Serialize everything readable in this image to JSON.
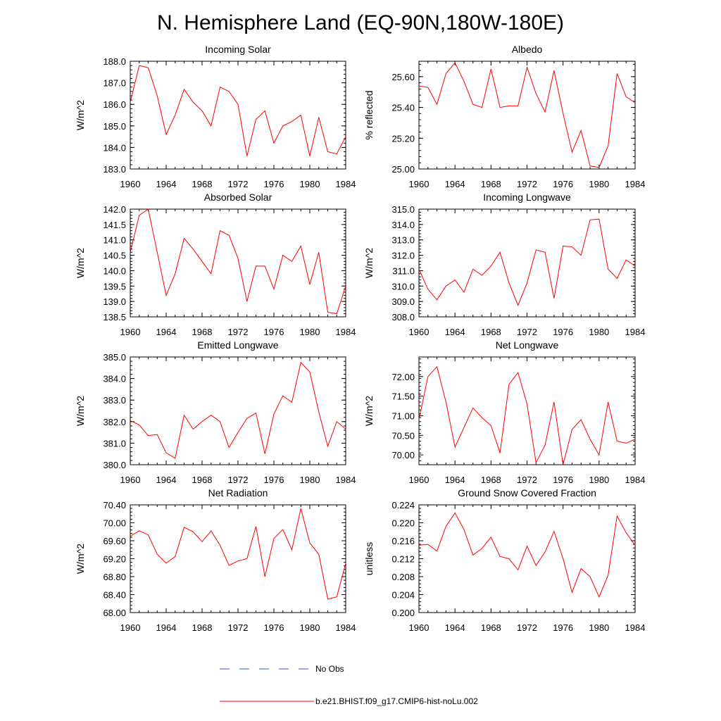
{
  "figure": {
    "title": "N. Hemisphere Land (EQ-90N,180W-180E)"
  },
  "legend": [
    {
      "label": "No Obs",
      "color": "#3355cc",
      "style": "dashed"
    },
    {
      "label": "b.e21.BHIST.f09_g17.CMIP6-hist-noLu.002",
      "color": "#ff0000",
      "style": "solid"
    }
  ],
  "chart_data": [
    {
      "type": "line",
      "title": "Incoming Solar",
      "ylabel": "W/m^2",
      "xlim": [
        1960,
        1984
      ],
      "xticks": [
        1960,
        1964,
        1968,
        1972,
        1976,
        1980,
        1984
      ],
      "ylim": [
        183.0,
        188.0
      ],
      "yticks": [
        "183.0",
        "184.0",
        "185.0",
        "186.0",
        "187.0",
        "188.0"
      ],
      "x": [
        1960,
        1961,
        1962,
        1963,
        1964,
        1965,
        1966,
        1967,
        1968,
        1969,
        1970,
        1971,
        1972,
        1973,
        1974,
        1975,
        1976,
        1977,
        1978,
        1979,
        1980,
        1981,
        1982,
        1983,
        1984
      ],
      "series": [
        {
          "color": "#ff0000",
          "values": [
            186.1,
            187.8,
            187.7,
            186.4,
            184.6,
            185.5,
            186.7,
            186.1,
            185.7,
            185.0,
            186.8,
            186.6,
            186.0,
            183.6,
            185.3,
            185.7,
            184.2,
            185.0,
            185.2,
            185.5,
            183.6,
            185.4,
            183.8,
            183.7,
            184.5
          ]
        }
      ]
    },
    {
      "type": "line",
      "title": "Albedo",
      "ylabel": "% reflected",
      "xlim": [
        1960,
        1984
      ],
      "xticks": [
        1960,
        1964,
        1968,
        1972,
        1976,
        1980,
        1984
      ],
      "ylim": [
        25.0,
        25.7
      ],
      "yticks": [
        "25.00",
        "25.20",
        "25.40",
        "25.60"
      ],
      "x": [
        1960,
        1961,
        1962,
        1963,
        1964,
        1965,
        1966,
        1967,
        1968,
        1969,
        1970,
        1971,
        1972,
        1973,
        1974,
        1975,
        1976,
        1977,
        1978,
        1979,
        1980,
        1981,
        1982,
        1983,
        1984
      ],
      "series": [
        {
          "color": "#ff0000",
          "values": [
            25.54,
            25.53,
            25.42,
            25.62,
            25.69,
            25.57,
            25.42,
            25.4,
            25.65,
            25.4,
            25.41,
            25.41,
            25.66,
            25.49,
            25.37,
            25.64,
            25.36,
            25.11,
            25.25,
            25.02,
            25.01,
            25.15,
            25.62,
            25.47,
            25.43
          ]
        }
      ]
    },
    {
      "type": "line",
      "title": "Absorbed Solar",
      "ylabel": "W/m^2",
      "xlim": [
        1960,
        1984
      ],
      "xticks": [
        1960,
        1964,
        1968,
        1972,
        1976,
        1980,
        1984
      ],
      "ylim": [
        138.5,
        142.0
      ],
      "yticks": [
        "138.5",
        "139.0",
        "139.5",
        "140.0",
        "140.5",
        "141.0",
        "141.5",
        "142.0"
      ],
      "x": [
        1960,
        1961,
        1962,
        1963,
        1964,
        1965,
        1966,
        1967,
        1968,
        1969,
        1970,
        1971,
        1972,
        1973,
        1974,
        1975,
        1976,
        1977,
        1978,
        1979,
        1980,
        1981,
        1982,
        1983,
        1984
      ],
      "series": [
        {
          "color": "#ff0000",
          "values": [
            140.6,
            141.8,
            142.0,
            140.6,
            139.2,
            139.9,
            141.05,
            140.7,
            140.3,
            139.9,
            141.3,
            141.15,
            140.4,
            139.0,
            140.15,
            140.15,
            139.4,
            140.5,
            140.3,
            140.8,
            139.55,
            140.6,
            138.65,
            138.6,
            139.5
          ]
        }
      ]
    },
    {
      "type": "line",
      "title": "Incoming Longwave",
      "ylabel": "W/m^2",
      "xlim": [
        1960,
        1984
      ],
      "xticks": [
        1960,
        1964,
        1968,
        1972,
        1976,
        1980,
        1984
      ],
      "ylim": [
        308.0,
        315.0
      ],
      "yticks": [
        "308.0",
        "309.0",
        "310.0",
        "311.0",
        "312.0",
        "313.0",
        "314.0",
        "315.0"
      ],
      "x": [
        1960,
        1961,
        1962,
        1963,
        1964,
        1965,
        1966,
        1967,
        1968,
        1969,
        1970,
        1971,
        1972,
        1973,
        1974,
        1975,
        1976,
        1977,
        1978,
        1979,
        1980,
        1981,
        1982,
        1983,
        1984
      ],
      "series": [
        {
          "color": "#ff0000",
          "values": [
            311.1,
            309.8,
            309.1,
            310.0,
            310.4,
            309.6,
            311.1,
            310.7,
            311.3,
            312.2,
            310.2,
            308.75,
            310.2,
            312.35,
            312.2,
            309.2,
            312.6,
            312.55,
            312.0,
            314.3,
            314.35,
            311.1,
            310.5,
            311.7,
            311.3
          ]
        }
      ]
    },
    {
      "type": "line",
      "title": "Emitted Longwave",
      "ylabel": "W/m^2",
      "xlim": [
        1960,
        1984
      ],
      "xticks": [
        1960,
        1964,
        1968,
        1972,
        1976,
        1980,
        1984
      ],
      "ylim": [
        380.0,
        385.0
      ],
      "yticks": [
        "380.0",
        "381.0",
        "382.0",
        "383.0",
        "384.0",
        "385.0"
      ],
      "x": [
        1960,
        1961,
        1962,
        1963,
        1964,
        1965,
        1966,
        1967,
        1968,
        1969,
        1970,
        1971,
        1972,
        1973,
        1974,
        1975,
        1976,
        1977,
        1978,
        1979,
        1980,
        1981,
        1982,
        1983,
        1984
      ],
      "series": [
        {
          "color": "#ff0000",
          "values": [
            382.05,
            381.85,
            381.35,
            381.4,
            380.55,
            380.3,
            382.3,
            381.65,
            382.0,
            382.3,
            382.0,
            380.8,
            381.5,
            382.15,
            382.4,
            380.5,
            382.35,
            383.2,
            382.9,
            384.75,
            384.3,
            382.45,
            380.85,
            382.0,
            381.65
          ]
        }
      ]
    },
    {
      "type": "line",
      "title": "Net Longwave",
      "ylabel": "W/m^2",
      "xlim": [
        1960,
        1984
      ],
      "xticks": [
        1960,
        1964,
        1968,
        1972,
        1976,
        1980,
        1984
      ],
      "ylim": [
        69.75,
        72.5
      ],
      "yticks": [
        "70.00",
        "70.50",
        "71.00",
        "71.50",
        "72.00"
      ],
      "x": [
        1960,
        1961,
        1962,
        1963,
        1964,
        1965,
        1966,
        1967,
        1968,
        1969,
        1970,
        1971,
        1972,
        1973,
        1974,
        1975,
        1976,
        1977,
        1978,
        1979,
        1980,
        1981,
        1982,
        1983,
        1984
      ],
      "series": [
        {
          "color": "#ff0000",
          "values": [
            70.9,
            72.0,
            72.25,
            71.35,
            70.2,
            70.7,
            71.2,
            70.95,
            70.75,
            70.05,
            71.8,
            72.1,
            71.3,
            69.8,
            70.25,
            71.35,
            69.75,
            70.65,
            70.9,
            70.4,
            70.0,
            71.35,
            70.35,
            70.3,
            70.4
          ]
        }
      ]
    },
    {
      "type": "line",
      "title": "Net Radiation",
      "ylabel": "W/m^2",
      "xlim": [
        1960,
        1984
      ],
      "xticks": [
        1960,
        1964,
        1968,
        1972,
        1976,
        1980,
        1984
      ],
      "ylim": [
        68.0,
        70.4
      ],
      "yticks": [
        "68.00",
        "68.40",
        "68.80",
        "69.20",
        "69.60",
        "70.00",
        "70.40"
      ],
      "x": [
        1960,
        1961,
        1962,
        1963,
        1964,
        1965,
        1966,
        1967,
        1968,
        1969,
        1970,
        1971,
        1972,
        1973,
        1974,
        1975,
        1976,
        1977,
        1978,
        1979,
        1980,
        1981,
        1982,
        1983,
        1984
      ],
      "series": [
        {
          "color": "#ff0000",
          "values": [
            69.7,
            69.82,
            69.73,
            69.3,
            69.1,
            69.25,
            69.9,
            69.8,
            69.58,
            69.82,
            69.5,
            69.05,
            69.15,
            69.2,
            69.92,
            68.8,
            69.65,
            69.85,
            69.4,
            70.32,
            69.55,
            69.3,
            68.3,
            68.35,
            69.1
          ]
        }
      ]
    },
    {
      "type": "line",
      "title": "Ground Snow Covered Fraction",
      "ylabel": "unitless",
      "xlim": [
        1960,
        1984
      ],
      "xticks": [
        1960,
        1964,
        1968,
        1972,
        1976,
        1980,
        1984
      ],
      "ylim": [
        0.2,
        0.224
      ],
      "yticks": [
        "0.200",
        "0.204",
        "0.208",
        "0.212",
        "0.216",
        "0.220",
        "0.224"
      ],
      "x": [
        1960,
        1961,
        1962,
        1963,
        1964,
        1965,
        1966,
        1967,
        1968,
        1969,
        1970,
        1971,
        1972,
        1973,
        1974,
        1975,
        1976,
        1977,
        1978,
        1979,
        1980,
        1981,
        1982,
        1983,
        1984
      ],
      "series": [
        {
          "color": "#ff0000",
          "values": [
            0.215,
            0.2152,
            0.2137,
            0.2192,
            0.2222,
            0.2185,
            0.2128,
            0.2143,
            0.2168,
            0.2125,
            0.212,
            0.2095,
            0.2148,
            0.2105,
            0.2135,
            0.2181,
            0.212,
            0.2045,
            0.2098,
            0.208,
            0.2035,
            0.2083,
            0.2215,
            0.2178,
            0.215
          ]
        }
      ]
    }
  ]
}
